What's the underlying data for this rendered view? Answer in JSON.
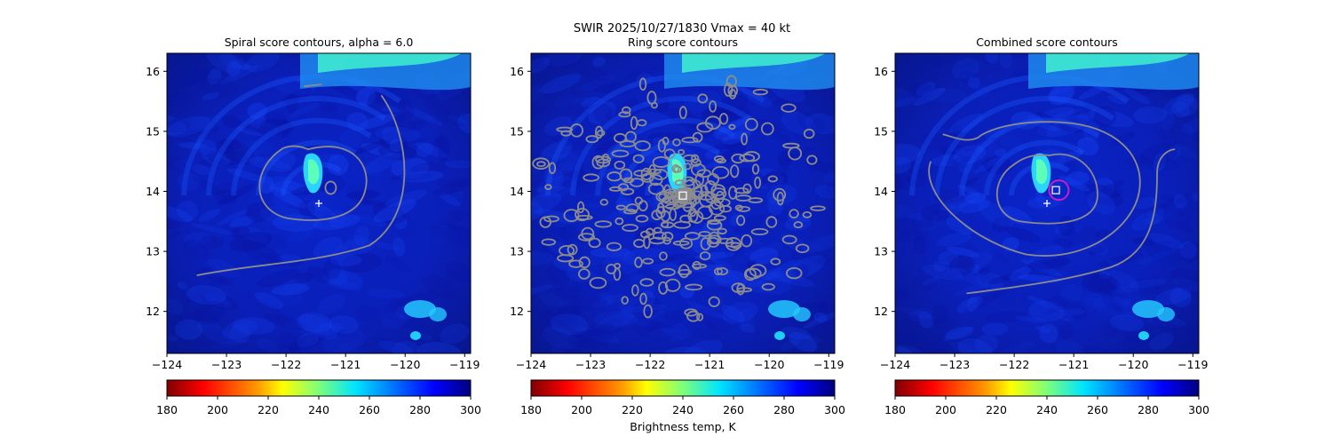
{
  "suptitle": [
    "SWIR  2025/10/27/1830    Vmax = 40 kt"
  ],
  "colors": {
    "bg_deep": "#0a1a9c",
    "bg_mid": "#0f33d6",
    "cloud_cold": "#27e0ff",
    "cloud_core": "#38f5c0",
    "contour": "#8c8c8c",
    "marker_plus": "#ffffff",
    "marker_square": "#ffffff",
    "marker_circle": "#c81ec8"
  },
  "chart_data": [
    {
      "type": "heatmap",
      "title": "Spiral score contours, alpha =  6.0",
      "xlim": [
        -124.0,
        -118.9
      ],
      "ylim": [
        11.3,
        16.3
      ],
      "xticks": [
        -124,
        -123,
        -122,
        -121,
        -120,
        -119
      ],
      "xtick_labels": [
        "−124",
        "−123",
        "−122",
        "−121",
        "−120",
        "−119"
      ],
      "yticks": [
        12,
        13,
        14,
        15,
        16
      ],
      "ytick_labels": [
        "12",
        "13",
        "14",
        "15",
        "16"
      ],
      "markers": [
        {
          "kind": "plus",
          "x": -121.45,
          "y": 13.8
        }
      ],
      "colorbar": {
        "min": 180,
        "max": 300,
        "ticks": [
          "180",
          "200",
          "220",
          "240",
          "260",
          "280",
          "300"
        ],
        "label": ""
      }
    },
    {
      "type": "heatmap",
      "title": "Ring score contours",
      "xlim": [
        -124.0,
        -118.9
      ],
      "ylim": [
        11.3,
        16.3
      ],
      "xticks": [
        -124,
        -123,
        -122,
        -121,
        -120,
        -119
      ],
      "xtick_labels": [
        "−124",
        "−123",
        "−122",
        "−121",
        "−120",
        "−119"
      ],
      "yticks": [
        12,
        13,
        14,
        15,
        16
      ],
      "ytick_labels": [
        "12",
        "13",
        "14",
        "15",
        "16"
      ],
      "markers": [
        {
          "kind": "square",
          "x": -121.45,
          "y": 13.93
        }
      ],
      "colorbar": {
        "min": 180,
        "max": 300,
        "ticks": [
          "180",
          "200",
          "220",
          "240",
          "260",
          "280",
          "300"
        ],
        "label": "Brightness temp, K"
      }
    },
    {
      "type": "heatmap",
      "title": "Combined score contours",
      "xlim": [
        -124.0,
        -118.9
      ],
      "ylim": [
        11.3,
        16.3
      ],
      "xticks": [
        -124,
        -123,
        -122,
        -121,
        -120,
        -119
      ],
      "xtick_labels": [
        "−124",
        "−123",
        "−122",
        "−121",
        "−120",
        "−119"
      ],
      "yticks": [
        12,
        13,
        14,
        15,
        16
      ],
      "ytick_labels": [
        "12",
        "13",
        "14",
        "15",
        "16"
      ],
      "markers": [
        {
          "kind": "plus",
          "x": -121.45,
          "y": 13.8
        },
        {
          "kind": "square",
          "x": -121.3,
          "y": 14.02
        },
        {
          "kind": "circle",
          "x": -121.25,
          "y": 14.02
        }
      ],
      "colorbar": {
        "min": 180,
        "max": 300,
        "ticks": [
          "180",
          "200",
          "220",
          "240",
          "260",
          "280",
          "300"
        ],
        "label": ""
      }
    }
  ]
}
